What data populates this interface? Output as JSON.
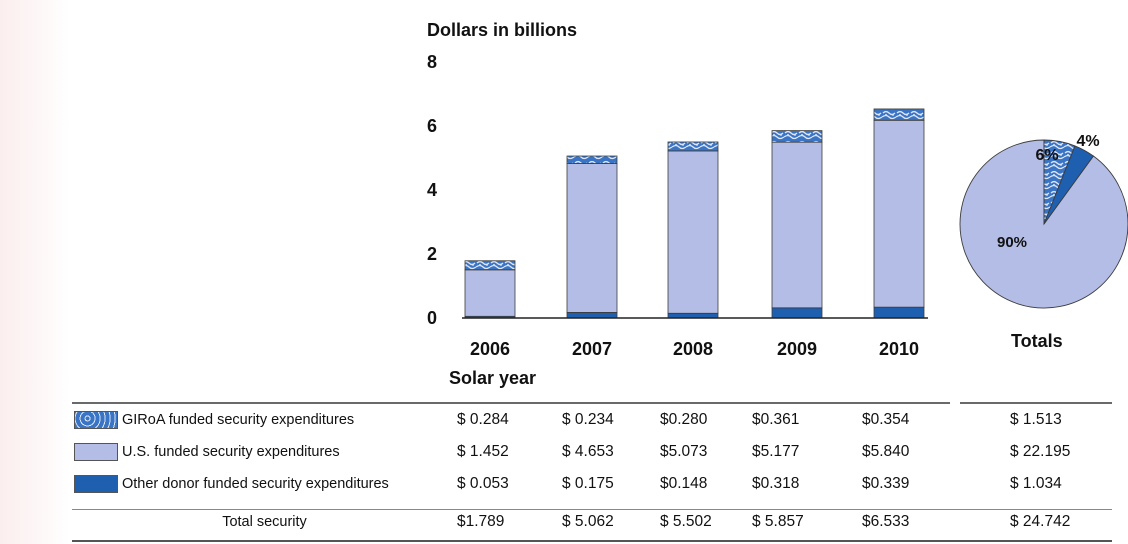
{
  "chart_data": {
    "type": "bar",
    "stacked": true,
    "ylabel": "Dollars in billions",
    "xlabel": "Solar year",
    "yticks": [
      0,
      2,
      4,
      6,
      8
    ],
    "ylim": [
      0,
      8
    ],
    "categories": [
      "2006",
      "2007",
      "2008",
      "2009",
      "2010"
    ],
    "series": [
      {
        "name": "Other donor funded security expenditures",
        "color": "#1f5fb0",
        "values": [
          0.053,
          0.175,
          0.148,
          0.318,
          0.339
        ]
      },
      {
        "name": "U.S. funded security expenditures",
        "color": "#b3bde6",
        "values": [
          1.452,
          4.653,
          5.073,
          5.177,
          5.84
        ]
      },
      {
        "name": "GIRoA funded security expenditures",
        "color": "#3a74c4",
        "pattern": "mottled",
        "values": [
          0.284,
          0.234,
          0.28,
          0.361,
          0.354
        ]
      }
    ],
    "pie": {
      "title": "Totals",
      "slices": [
        {
          "series": "U.S. funded security expenditures",
          "label": "90%",
          "value": 90
        },
        {
          "series": "GIRoA funded security expenditures",
          "label": "6%",
          "value": 6
        },
        {
          "series": "Other donor funded security expenditures",
          "label": "4%",
          "value": 4
        }
      ]
    }
  },
  "table": {
    "rows": [
      {
        "label": "GIRoA funded security expenditures",
        "swatch": "girao",
        "values": [
          "$ 0.284",
          "$ 0.234",
          "$0.280",
          "$0.361",
          "$0.354"
        ],
        "total": "$ 1.513"
      },
      {
        "label": "U.S. funded security expenditures",
        "swatch": "us",
        "values": [
          "$ 1.452",
          "$ 4.653",
          "$5.073",
          "$5.177",
          "$5.840"
        ],
        "total": "$ 22.195"
      },
      {
        "label": "Other donor funded security expenditures",
        "swatch": "other",
        "values": [
          "$ 0.053",
          "$ 0.175",
          "$0.148",
          "$0.318",
          "$0.339"
        ],
        "total": "$ 1.034"
      },
      {
        "label": "Total security",
        "swatch": "",
        "values": [
          "$1.789",
          "$ 5.062",
          "$ 5.502",
          "$ 5.857",
          "$6.533"
        ],
        "total": "$ 24.742"
      }
    ]
  }
}
